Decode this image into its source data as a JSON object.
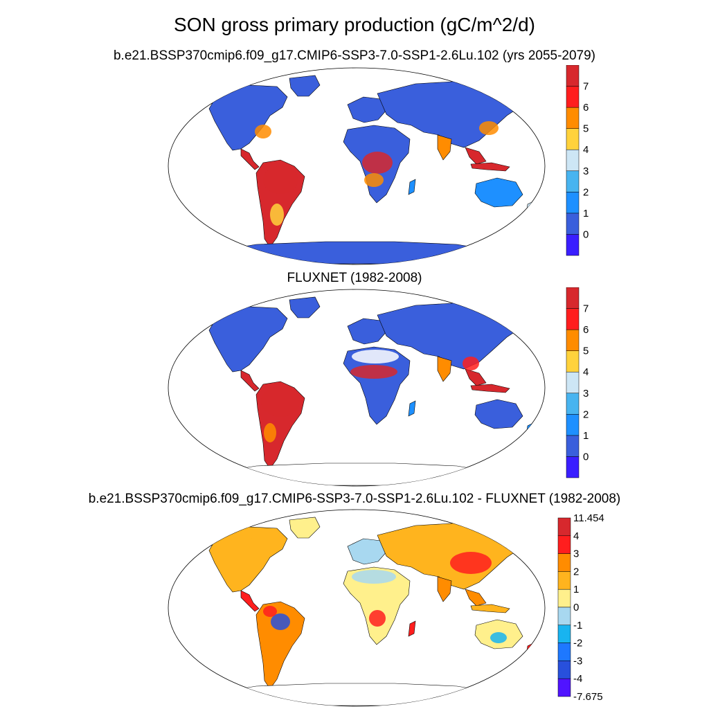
{
  "title": "SON gross primary production (gC/m^2/d)",
  "panels": [
    {
      "subtitle": "b.e21.BSSP370cmip6.f09_g17.CMIP6-SSP3-7.0-SSP1-2.6Lu.102 (yrs 2055-2079)"
    },
    {
      "subtitle": "FLUXNET (1982-2008)"
    },
    {
      "subtitle": "b.e21.BSSP370cmip6.f09_g17.CMIP6-SSP3-7.0-SSP1-2.6Lu.102 - FLUXNET (1982-2008)"
    }
  ],
  "colorbars": {
    "abs": {
      "labels": [
        "0",
        "1",
        "2",
        "3",
        "4",
        "5",
        "6",
        "7"
      ],
      "colors": [
        "#3a1eff",
        "#3a5fdc",
        "#1e90ff",
        "#48b4f0",
        "#cde6f5",
        "#ffd23c",
        "#ff8c00",
        "#ff1e1e",
        "#d7282d"
      ]
    },
    "diff": {
      "labels": [
        "11.454",
        "4",
        "3",
        "2",
        "1",
        "0",
        "-1",
        "-2",
        "-3",
        "-4",
        "-7.675"
      ],
      "colors": [
        "#d7282d",
        "#ff1e1e",
        "#ff8c00",
        "#ffb41e",
        "#fff08c",
        "#a8d8f0",
        "#18b4f0",
        "#1e78ff",
        "#2850dc",
        "#5014ff"
      ]
    }
  },
  "colors": {
    "ocean": "#ffffff",
    "high_gpp": "#d7282d",
    "low_gpp": "#3a5fdc"
  }
}
